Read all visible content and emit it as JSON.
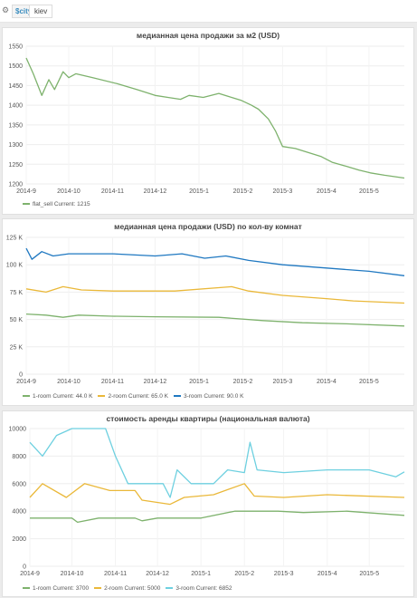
{
  "template_variable": {
    "label": "$city:",
    "value": "kiev"
  },
  "icons": {
    "settings": "gear-icon"
  },
  "colors": {
    "green": "#7eb26d",
    "orange": "#eab839",
    "blue": "#1f78c1",
    "cyan": "#6ed0e0"
  },
  "panels": [
    {
      "title": "медианная цена продажи за м2 (USD)",
      "legend": [
        {
          "name": "flat_sell",
          "current_label": "Current:",
          "current": "1215",
          "color": "#7eb26d"
        }
      ]
    },
    {
      "title": "медианная цена продажи (USD) по кол-ву комнат",
      "legend": [
        {
          "name": "1-room",
          "current_label": "Current:",
          "current": "44.0 K",
          "color": "#7eb26d"
        },
        {
          "name": "2-room",
          "current_label": "Current:",
          "current": "65.0 K",
          "color": "#eab839"
        },
        {
          "name": "3-room",
          "current_label": "Current:",
          "current": "90.0 K",
          "color": "#1f78c1"
        }
      ]
    },
    {
      "title": "стоимость аренды квартиры (национальная валюта)",
      "legend": [
        {
          "name": "1-room",
          "current_label": "Current:",
          "current": "3700",
          "color": "#7eb26d"
        },
        {
          "name": "2-room",
          "current_label": "Current:",
          "current": "5000",
          "color": "#eab839"
        },
        {
          "name": "3-room",
          "current_label": "Current:",
          "current": "6852",
          "color": "#6ed0e0"
        }
      ]
    }
  ],
  "chart_data": [
    {
      "type": "line",
      "title": "медианная цена продажи за м2 (USD)",
      "x_ticks": [
        "2014-9",
        "2014-10",
        "2014-11",
        "2014-12",
        "2015-1",
        "2015-2",
        "2015-3",
        "2015-4",
        "2015-5"
      ],
      "xlim": [
        "2014-09-01",
        "2015-05-26"
      ],
      "ylim": [
        1200,
        1550
      ],
      "y_ticks": [
        1200,
        1250,
        1300,
        1350,
        1400,
        1450,
        1500,
        1550
      ],
      "y_tick_labels": [
        "1200",
        "1250",
        "1300",
        "1350",
        "1400",
        "1450",
        "1500",
        "1550"
      ],
      "series": [
        {
          "name": "flat_sell",
          "color": "#7eb26d",
          "points": [
            [
              "2014-09-01",
              1520
            ],
            [
              "2014-09-06",
              1480
            ],
            [
              "2014-09-12",
              1425
            ],
            [
              "2014-09-17",
              1465
            ],
            [
              "2014-09-21",
              1440
            ],
            [
              "2014-09-27",
              1485
            ],
            [
              "2014-10-01",
              1470
            ],
            [
              "2014-10-06",
              1480
            ],
            [
              "2014-10-18",
              1470
            ],
            [
              "2014-11-04",
              1455
            ],
            [
              "2014-11-18",
              1440
            ],
            [
              "2014-12-01",
              1425
            ],
            [
              "2014-12-10",
              1420
            ],
            [
              "2014-12-19",
              1415
            ],
            [
              "2014-12-25",
              1425
            ],
            [
              "2015-01-04",
              1420
            ],
            [
              "2015-01-15",
              1430
            ],
            [
              "2015-01-24",
              1420
            ],
            [
              "2015-01-31",
              1412
            ],
            [
              "2015-02-07",
              1400
            ],
            [
              "2015-02-12",
              1390
            ],
            [
              "2015-02-19",
              1365
            ],
            [
              "2015-02-24",
              1335
            ],
            [
              "2015-03-01",
              1295
            ],
            [
              "2015-03-10",
              1290
            ],
            [
              "2015-03-19",
              1280
            ],
            [
              "2015-03-28",
              1270
            ],
            [
              "2015-04-05",
              1255
            ],
            [
              "2015-04-15",
              1245
            ],
            [
              "2015-04-24",
              1235
            ],
            [
              "2015-05-02",
              1228
            ],
            [
              "2015-05-12",
              1222
            ],
            [
              "2015-05-26",
              1215
            ]
          ]
        }
      ]
    },
    {
      "type": "line",
      "title": "медианная цена продажи (USD) по кол-ву комнат",
      "x_ticks": [
        "2014-9",
        "2014-10",
        "2014-11",
        "2014-12",
        "2015-1",
        "2015-2",
        "2015-3",
        "2015-4",
        "2015-5"
      ],
      "xlim": [
        "2014-09-01",
        "2015-05-26"
      ],
      "ylim": [
        0,
        125000
      ],
      "y_ticks": [
        0,
        25000,
        50000,
        75000,
        100000,
        125000
      ],
      "y_tick_labels": [
        "0",
        "25 K",
        "50 K",
        "75 K",
        "100 K",
        "125 K"
      ],
      "series": [
        {
          "name": "1-room",
          "color": "#7eb26d",
          "points": [
            [
              "2014-09-01",
              55000
            ],
            [
              "2014-09-15",
              54000
            ],
            [
              "2014-09-27",
              52000
            ],
            [
              "2014-10-08",
              54000
            ],
            [
              "2014-11-01",
              53000
            ],
            [
              "2014-12-01",
              52500
            ],
            [
              "2015-01-15",
              52000
            ],
            [
              "2015-02-15",
              49000
            ],
            [
              "2015-03-15",
              47000
            ],
            [
              "2015-04-15",
              46000
            ],
            [
              "2015-05-26",
              44000
            ]
          ]
        },
        {
          "name": "2-room",
          "color": "#eab839",
          "points": [
            [
              "2014-09-01",
              78000
            ],
            [
              "2014-09-15",
              75000
            ],
            [
              "2014-09-27",
              80000
            ],
            [
              "2014-10-10",
              77000
            ],
            [
              "2014-11-01",
              76000
            ],
            [
              "2014-12-15",
              76000
            ],
            [
              "2015-01-24",
              80000
            ],
            [
              "2015-02-05",
              76000
            ],
            [
              "2015-03-01",
              72000
            ],
            [
              "2015-04-01",
              69000
            ],
            [
              "2015-04-20",
              67000
            ],
            [
              "2015-05-26",
              65000
            ]
          ]
        },
        {
          "name": "3-room",
          "color": "#1f78c1",
          "points": [
            [
              "2014-09-01",
              115000
            ],
            [
              "2014-09-05",
              105000
            ],
            [
              "2014-09-12",
              112000
            ],
            [
              "2014-09-20",
              108000
            ],
            [
              "2014-10-01",
              110000
            ],
            [
              "2014-11-01",
              110000
            ],
            [
              "2014-12-01",
              108000
            ],
            [
              "2014-12-20",
              110000
            ],
            [
              "2015-01-05",
              106000
            ],
            [
              "2015-01-20",
              108000
            ],
            [
              "2015-02-05",
              104000
            ],
            [
              "2015-03-01",
              100000
            ],
            [
              "2015-04-01",
              97000
            ],
            [
              "2015-05-01",
              94000
            ],
            [
              "2015-05-26",
              90000
            ]
          ]
        }
      ]
    },
    {
      "type": "line",
      "title": "стоимость аренды квартиры (национальная валюта)",
      "x_ticks": [
        "2014-9",
        "2014-10",
        "2014-11",
        "2014-12",
        "2015-1",
        "2015-2",
        "2015-3",
        "2015-4",
        "2015-5"
      ],
      "xlim": [
        "2014-09-01",
        "2015-05-26"
      ],
      "ylim": [
        0,
        10000
      ],
      "y_ticks": [
        0,
        2000,
        4000,
        6000,
        8000,
        10000
      ],
      "y_tick_labels": [
        "0",
        "2000",
        "4000",
        "6000",
        "8000",
        "10000"
      ],
      "series": [
        {
          "name": "1-room",
          "color": "#7eb26d",
          "points": [
            [
              "2014-09-01",
              3500
            ],
            [
              "2014-10-01",
              3500
            ],
            [
              "2014-10-05",
              3200
            ],
            [
              "2014-10-20",
              3500
            ],
            [
              "2014-11-15",
              3500
            ],
            [
              "2014-11-20",
              3300
            ],
            [
              "2014-12-01",
              3500
            ],
            [
              "2015-01-01",
              3500
            ],
            [
              "2015-01-25",
              4000
            ],
            [
              "2015-02-25",
              4000
            ],
            [
              "2015-03-15",
              3900
            ],
            [
              "2015-04-15",
              4000
            ],
            [
              "2015-05-26",
              3700
            ]
          ]
        },
        {
          "name": "2-room",
          "color": "#eab839",
          "points": [
            [
              "2014-09-01",
              5000
            ],
            [
              "2014-09-10",
              6000
            ],
            [
              "2014-09-27",
              5000
            ],
            [
              "2014-10-10",
              6000
            ],
            [
              "2014-10-28",
              5500
            ],
            [
              "2014-11-15",
              5500
            ],
            [
              "2014-11-20",
              4800
            ],
            [
              "2014-12-10",
              4500
            ],
            [
              "2014-12-20",
              5000
            ],
            [
              "2015-01-10",
              5200
            ],
            [
              "2015-02-01",
              6000
            ],
            [
              "2015-02-08",
              5100
            ],
            [
              "2015-03-01",
              5000
            ],
            [
              "2015-04-01",
              5200
            ],
            [
              "2015-05-26",
              5000
            ]
          ]
        },
        {
          "name": "3-room",
          "color": "#6ed0e0",
          "points": [
            [
              "2014-09-01",
              9000
            ],
            [
              "2014-09-10",
              8000
            ],
            [
              "2014-09-20",
              9500
            ],
            [
              "2014-10-01",
              10000
            ],
            [
              "2014-10-25",
              10000
            ],
            [
              "2014-11-01",
              8000
            ],
            [
              "2014-11-10",
              6000
            ],
            [
              "2014-12-05",
              6000
            ],
            [
              "2014-12-10",
              5000
            ],
            [
              "2014-12-15",
              7000
            ],
            [
              "2014-12-25",
              6000
            ],
            [
              "2015-01-10",
              6000
            ],
            [
              "2015-01-20",
              7000
            ],
            [
              "2015-02-01",
              6800
            ],
            [
              "2015-02-05",
              9000
            ],
            [
              "2015-02-10",
              7000
            ],
            [
              "2015-03-01",
              6800
            ],
            [
              "2015-04-01",
              7000
            ],
            [
              "2015-05-01",
              7000
            ],
            [
              "2015-05-20",
              6500
            ],
            [
              "2015-05-26",
              6852
            ]
          ]
        }
      ]
    }
  ]
}
